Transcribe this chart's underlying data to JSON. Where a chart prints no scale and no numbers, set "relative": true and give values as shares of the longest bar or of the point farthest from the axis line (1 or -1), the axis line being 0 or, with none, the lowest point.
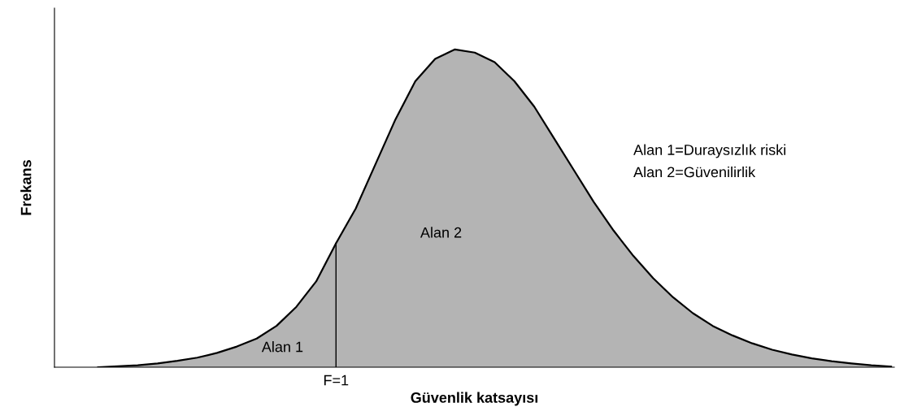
{
  "chart_data": {
    "type": "area",
    "relative": true,
    "xlabel": "Güvenlik katsayısı",
    "ylabel": "Frekans",
    "categories": [
      null,
      null,
      null,
      null,
      null,
      null,
      null,
      null,
      null,
      null,
      null,
      null,
      null,
      null,
      null,
      null,
      null,
      null,
      null,
      null,
      null,
      null,
      null,
      null,
      null,
      null,
      null,
      null,
      null,
      null,
      null,
      null,
      null,
      null,
      null,
      null,
      null,
      null,
      null,
      null,
      null
    ],
    "series": [
      {
        "color": "#b4b4b4",
        "values": [
          0.0,
          0.003,
          0.006,
          0.012,
          0.02,
          0.03,
          0.045,
          0.065,
          0.09,
          0.13,
          0.19,
          0.27,
          0.39,
          0.5,
          0.64,
          0.78,
          0.9,
          0.97,
          1.0,
          0.99,
          0.96,
          0.9,
          0.82,
          0.72,
          0.62,
          0.52,
          0.43,
          0.35,
          0.28,
          0.22,
          0.17,
          0.13,
          0.1,
          0.075,
          0.055,
          0.04,
          0.028,
          0.019,
          0.012,
          0.006,
          0.002
        ]
      }
    ],
    "annotations": [
      "Alan 1",
      "Alan 2",
      "Alan 1=Duraysızlık riski",
      "Alan 2=Güvenilirlik",
      "F=1"
    ]
  }
}
